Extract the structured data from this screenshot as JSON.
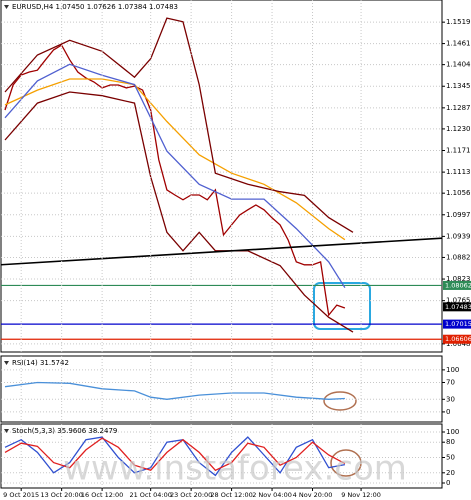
{
  "watermark": "www.instaforex.com",
  "chart_data": [
    {
      "type": "line",
      "title": "EURUSD,H4 1.07450 1.07626 1.07384 1.07483",
      "xlim": [
        0,
        54
      ],
      "ylim": [
        1.0626,
        1.1579
      ],
      "grid": true,
      "yticks": [
        {
          "value": 1.1519,
          "label": "1.15190"
        },
        {
          "value": 1.1461,
          "label": "1.14610"
        },
        {
          "value": 1.1404,
          "label": "1.14040"
        },
        1.13455,
        {
          "value": 1.1287,
          "label": "1.12870"
        },
        {
          "value": 1.123,
          "label": "1.12300"
        },
        1.11715,
        {
          "value": 1.1113,
          "label": "1.11130"
        },
        {
          "value": 1.1056,
          "label": "1.10560"
        },
        1.09975,
        {
          "value": 1.0939,
          "label": "1.09390"
        },
        {
          "value": 1.0882,
          "label": "1.08820"
        },
        1.08235,
        {
          "value": 1.0765,
          "label": "1.07650"
        },
        {
          "value": 1.0648,
          "label": "1.06480"
        }
      ],
      "series": [
        {
          "name": "close",
          "color": "#a00000",
          "values": [
            1.1281,
            1.1349,
            1.1376,
            1.1384,
            1.1389,
            1.1417,
            1.1444,
            1.1457,
            1.1417,
            1.1384,
            1.1368,
            1.1357,
            1.1341,
            1.1349,
            1.1349,
            1.1341,
            1.1346,
            1.1335,
            1.1281,
            1.1146,
            1.1065,
            1.1051,
            1.1038,
            1.1051,
            1.1051,
            1.1038,
            1.1065,
            1.0943,
            1.097,
            1.0997,
            1.1011,
            1.1024,
            1.1011,
            1.0989,
            1.097,
            1.0929,
            1.087,
            1.0862,
            1.0862,
            1.087,
            1.0726,
            1.0753,
            1.0745
          ]
        },
        {
          "name": "ma-slow",
          "color": "#f5a000",
          "x": [
            0,
            4,
            8,
            12,
            16,
            20,
            24,
            28,
            32,
            36,
            40,
            42
          ],
          "values": [
            1.1295,
            1.1335,
            1.1365,
            1.1365,
            1.135,
            1.125,
            1.116,
            1.111,
            1.108,
            1.103,
            1.096,
            1.093
          ]
        },
        {
          "name": "ma-fast",
          "color": "#5060d0",
          "x": [
            0,
            4,
            8,
            12,
            16,
            20,
            24,
            28,
            32,
            36,
            40,
            42
          ],
          "values": [
            1.126,
            1.136,
            1.1405,
            1.1375,
            1.135,
            1.117,
            1.108,
            1.104,
            1.104,
            1.096,
            1.087,
            1.08
          ]
        },
        {
          "name": "bb-upper",
          "color": "#7a0000",
          "x": [
            0,
            4,
            8,
            12,
            16,
            18,
            20,
            22,
            24,
            26,
            30,
            34,
            37,
            40,
            43
          ],
          "values": [
            1.133,
            1.143,
            1.147,
            1.144,
            1.137,
            1.142,
            1.153,
            1.152,
            1.135,
            1.111,
            1.108,
            1.106,
            1.105,
            1.099,
            1.095
          ]
        },
        {
          "name": "bb-lower",
          "color": "#7a0000",
          "x": [
            0,
            4,
            8,
            12,
            16,
            18,
            20,
            22,
            24,
            26,
            30,
            34,
            37,
            40,
            43
          ],
          "values": [
            1.12,
            1.13,
            1.133,
            1.132,
            1.13,
            1.11,
            1.095,
            1.09,
            1.095,
            1.09,
            1.09,
            1.086,
            1.078,
            1.072,
            1.068
          ]
        },
        {
          "name": "trendline",
          "color": "#000000",
          "x": [
            -0.6,
            54.6
          ],
          "values": [
            1.0862,
            1.0935
          ]
        }
      ],
      "levels": [
        {
          "value": 1.08062,
          "color": "#2e8b57"
        },
        {
          "value": 1.07483,
          "color": "#000000"
        },
        {
          "value": 1.07015,
          "color": "#0000cc"
        },
        {
          "value": 1.06606,
          "color": "#e02000"
        }
      ]
    },
    {
      "type": "line",
      "title": "RSI(14) 31.5742",
      "xlim": [
        0,
        54
      ],
      "ylim": [
        -24,
        133
      ],
      "grid": true,
      "yticks": [
        100,
        70,
        30,
        0
      ],
      "series": [
        {
          "name": "rsi",
          "color": "#4a90d9",
          "x": [
            0,
            4,
            8,
            12,
            16,
            18,
            20,
            24,
            28,
            32,
            36,
            40,
            42
          ],
          "values": [
            60,
            70,
            68,
            55,
            50,
            35,
            30,
            40,
            45,
            45,
            35,
            30,
            32
          ]
        }
      ]
    },
    {
      "type": "line",
      "title": "Stoch(5,3,3) 35.9606 38.2479",
      "xlim": [
        0,
        54
      ],
      "ylim": [
        -9.8,
        115.7
      ],
      "grid": true,
      "yticks": [
        100,
        80,
        50,
        20,
        0
      ],
      "xticks": [
        {
          "value": 2,
          "label": "9 Oct 2015"
        },
        {
          "value": 7,
          "label": "13 Oct 20:00"
        },
        {
          "value": 12,
          "label": "16 Oct 12:00"
        },
        {
          "value": 18,
          "label": "21 Oct 04:00"
        },
        {
          "value": 23,
          "label": "23 Oct 20:00"
        },
        {
          "value": 28,
          "label": "28 Oct 12:00"
        },
        {
          "value": 33,
          "label": "2 Nov 04:00"
        },
        {
          "value": 38,
          "label": "4 Nov 20:00"
        },
        {
          "value": 44,
          "label": "9 Nov 12:00"
        }
      ],
      "series": [
        {
          "name": "main",
          "color": "#3050d0",
          "x": [
            0,
            2,
            4,
            6,
            8,
            10,
            12,
            14,
            16,
            18,
            20,
            22,
            24,
            26,
            28,
            30,
            32,
            34,
            36,
            38,
            40,
            42
          ],
          "values": [
            70,
            85,
            60,
            20,
            40,
            85,
            90,
            50,
            20,
            30,
            80,
            85,
            40,
            15,
            60,
            90,
            55,
            20,
            70,
            85,
            30,
            36
          ]
        },
        {
          "name": "signal",
          "color": "#e02020",
          "x": [
            0,
            2,
            4,
            6,
            8,
            10,
            12,
            14,
            16,
            18,
            20,
            22,
            24,
            26,
            28,
            30,
            32,
            34,
            36,
            38,
            40,
            42
          ],
          "values": [
            60,
            78,
            72,
            40,
            30,
            65,
            88,
            70,
            35,
            25,
            60,
            85,
            60,
            25,
            40,
            78,
            70,
            35,
            50,
            80,
            55,
            38
          ]
        }
      ]
    }
  ]
}
